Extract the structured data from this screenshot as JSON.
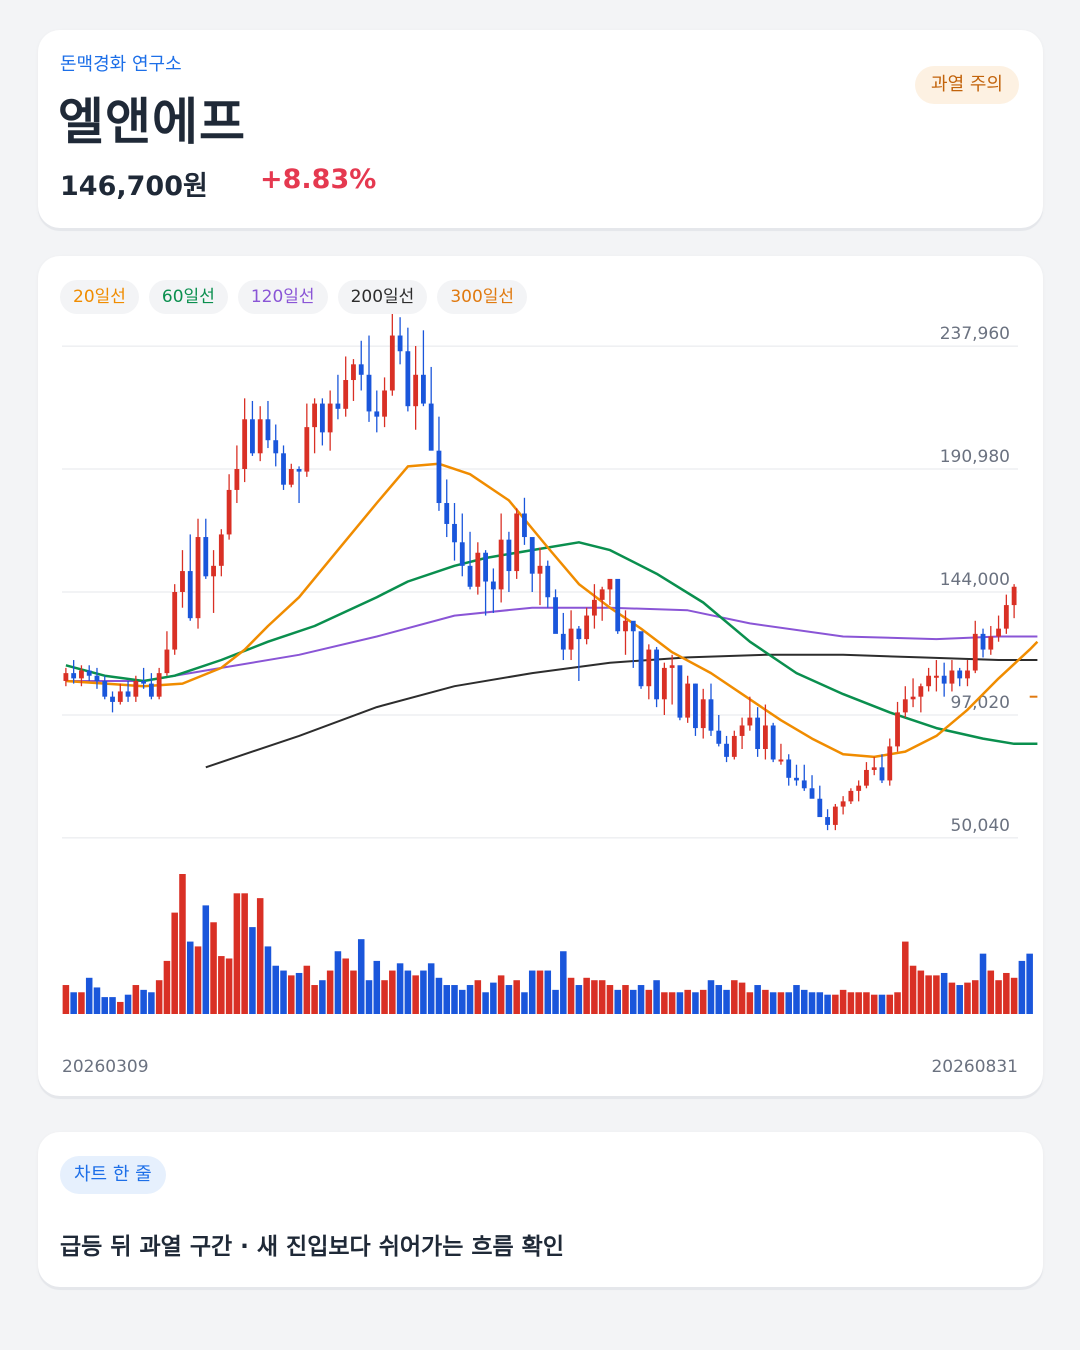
{
  "header": {
    "brand": "돈맥경화 연구소",
    "title": "엘앤에프",
    "price": "146,700원",
    "change": "+8.83%",
    "badge": "과열 주의"
  },
  "colors": {
    "up": "#d93025",
    "down": "#1a56db",
    "ma20": "#f08c00",
    "ma60": "#0a8f4e",
    "ma120": "#8a55d6",
    "ma200": "#2d2d2d",
    "ma300": "#e07a10",
    "grid": "#e5e7eb"
  },
  "summary": {
    "tag": "차트 한 줄",
    "text": "급등 뒤 과열 구간 · 새 진입보다 쉬어가는 흐름 확인"
  },
  "chart_data": {
    "type": "candlestick",
    "legend": [
      {
        "label": "20일선",
        "key": "ma20"
      },
      {
        "label": "60일선",
        "key": "ma60"
      },
      {
        "label": "120일선",
        "key": "ma120"
      },
      {
        "label": "200일선",
        "key": "ma200"
      },
      {
        "label": "300일선",
        "key": "ma300"
      }
    ],
    "y_ticks": [
      {
        "value": 237960,
        "label": "237,960"
      },
      {
        "value": 190980,
        "label": "190,980"
      },
      {
        "value": 144000,
        "label": "144,000"
      },
      {
        "value": 97020,
        "label": "97,020"
      },
      {
        "value": 50040,
        "label": "50,040"
      }
    ],
    "ylim": [
      50040,
      237960
    ],
    "x_start_label": "20260309",
    "x_end_label": "20260831",
    "grid": true,
    "candles": [
      [
        110,
        115,
        108,
        113
      ],
      [
        113,
        118,
        109,
        111
      ],
      [
        111,
        116,
        108,
        114
      ],
      [
        114,
        116,
        110,
        112
      ],
      [
        112,
        115,
        107,
        110
      ],
      [
        110,
        112,
        103,
        104
      ],
      [
        104,
        106,
        98,
        102
      ],
      [
        102,
        109,
        101,
        106
      ],
      [
        106,
        110,
        102,
        104
      ],
      [
        104,
        112,
        102,
        110
      ],
      [
        110,
        115,
        107,
        109
      ],
      [
        109,
        113,
        103,
        104
      ],
      [
        104,
        115,
        103,
        113
      ],
      [
        113,
        129,
        112,
        122
      ],
      [
        122,
        147,
        120,
        144
      ],
      [
        144,
        160,
        138,
        152
      ],
      [
        152,
        166,
        133,
        134
      ],
      [
        134,
        172,
        130,
        165
      ],
      [
        165,
        172,
        149,
        150
      ],
      [
        150,
        160,
        136,
        154
      ],
      [
        154,
        168,
        150,
        166
      ],
      [
        166,
        189,
        164,
        183
      ],
      [
        183,
        200,
        178,
        191
      ],
      [
        191,
        218,
        186,
        210
      ],
      [
        210,
        217,
        196,
        197
      ],
      [
        197,
        215,
        194,
        210
      ],
      [
        210,
        217,
        199,
        202
      ],
      [
        202,
        208,
        192,
        197
      ],
      [
        197,
        200,
        183,
        185
      ],
      [
        185,
        193,
        184,
        191
      ],
      [
        191,
        192,
        178,
        190
      ],
      [
        190,
        216,
        188,
        207
      ],
      [
        207,
        218,
        197,
        216
      ],
      [
        216,
        218,
        200,
        205
      ],
      [
        205,
        221,
        198,
        216
      ],
      [
        216,
        227,
        210,
        214
      ],
      [
        214,
        234,
        211,
        225
      ],
      [
        225,
        233,
        217,
        231
      ],
      [
        231,
        240,
        221,
        227
      ],
      [
        227,
        242,
        209,
        213
      ],
      [
        213,
        221,
        205,
        211
      ],
      [
        211,
        226,
        207,
        221
      ],
      [
        221,
        253,
        219,
        242
      ],
      [
        242,
        249,
        231,
        236
      ],
      [
        236,
        245,
        213,
        215
      ],
      [
        215,
        238,
        206,
        227
      ],
      [
        227,
        244,
        215,
        216
      ],
      [
        216,
        230,
        200,
        198
      ],
      [
        198,
        211,
        175,
        178
      ],
      [
        178,
        187,
        165,
        170
      ],
      [
        170,
        178,
        156,
        163
      ],
      [
        163,
        174,
        150,
        154
      ],
      [
        154,
        167,
        145,
        146
      ],
      [
        146,
        163,
        143,
        159
      ],
      [
        159,
        160,
        135,
        148
      ],
      [
        148,
        153,
        136,
        145
      ],
      [
        145,
        174,
        140,
        164
      ],
      [
        164,
        167,
        144,
        152
      ],
      [
        152,
        176,
        149,
        174
      ],
      [
        174,
        180,
        162,
        165
      ],
      [
        165,
        164,
        144,
        151
      ],
      [
        151,
        161,
        139,
        154
      ],
      [
        154,
        156,
        138,
        142
      ],
      [
        142,
        145,
        129,
        128
      ],
      [
        128,
        136,
        118,
        122
      ],
      [
        122,
        137,
        118,
        130
      ],
      [
        130,
        131,
        110,
        126
      ],
      [
        126,
        138,
        124,
        135
      ],
      [
        135,
        147,
        130,
        141
      ],
      [
        141,
        146,
        133,
        145
      ],
      [
        145,
        148,
        139,
        149
      ],
      [
        149,
        142,
        128,
        129
      ],
      [
        129,
        137,
        120,
        133
      ],
      [
        133,
        131,
        115,
        129
      ],
      [
        129,
        126,
        107,
        108
      ],
      [
        108,
        124,
        103,
        122
      ],
      [
        122,
        123,
        100,
        103
      ],
      [
        103,
        117,
        97,
        115
      ],
      [
        115,
        120,
        101,
        116
      ],
      [
        116,
        114,
        95,
        96
      ],
      [
        96,
        112,
        94,
        109
      ],
      [
        109,
        109,
        89,
        92
      ],
      [
        92,
        107,
        88,
        103
      ],
      [
        103,
        109,
        89,
        91
      ],
      [
        91,
        97,
        85,
        86
      ],
      [
        86,
        89,
        79,
        81
      ],
      [
        81,
        91,
        80,
        89
      ],
      [
        89,
        96,
        84,
        93
      ],
      [
        93,
        104,
        91,
        96
      ],
      [
        96,
        100,
        81,
        84
      ],
      [
        84,
        101,
        80,
        93
      ],
      [
        93,
        94,
        79,
        80
      ],
      [
        80,
        86,
        78,
        80
      ],
      [
        80,
        82,
        70,
        73
      ],
      [
        73,
        78,
        70,
        72
      ],
      [
        72,
        78,
        68,
        69
      ],
      [
        69,
        74,
        66,
        65
      ],
      [
        65,
        70,
        62,
        58
      ],
      [
        58,
        61,
        53,
        55
      ],
      [
        55,
        63,
        53,
        62
      ],
      [
        62,
        66,
        59,
        64
      ],
      [
        64,
        69,
        63,
        68
      ],
      [
        68,
        72,
        64,
        70
      ],
      [
        70,
        79,
        69,
        76
      ],
      [
        76,
        81,
        74,
        77
      ],
      [
        77,
        82,
        71,
        72
      ],
      [
        72,
        88,
        70,
        85
      ],
      [
        85,
        102,
        83,
        98
      ],
      [
        98,
        108,
        96,
        103
      ],
      [
        103,
        111,
        100,
        104
      ],
      [
        104,
        109,
        98,
        108
      ],
      [
        108,
        115,
        106,
        112
      ],
      [
        112,
        118,
        106,
        112
      ],
      [
        112,
        117,
        104,
        109
      ],
      [
        109,
        118,
        106,
        114
      ],
      [
        114,
        115,
        108,
        111
      ],
      [
        111,
        118,
        108,
        114
      ],
      [
        114,
        133,
        113,
        128
      ],
      [
        128,
        130,
        119,
        122
      ],
      [
        122,
        131,
        120,
        127
      ],
      [
        127,
        135,
        125,
        130
      ],
      [
        130,
        143,
        128,
        139
      ],
      [
        139,
        147,
        134,
        146
      ]
    ],
    "volume": [
      12,
      9,
      9,
      15,
      11,
      7,
      7,
      5,
      8,
      12,
      10,
      9,
      14,
      22,
      42,
      58,
      30,
      28,
      45,
      38,
      24,
      23,
      50,
      50,
      36,
      48,
      28,
      20,
      18,
      16,
      17,
      20,
      12,
      14,
      18,
      26,
      23,
      18,
      31,
      14,
      22,
      14,
      18,
      21,
      18,
      16,
      18,
      21,
      15,
      12,
      12,
      10,
      12,
      14,
      9,
      13,
      16,
      12,
      14,
      9,
      18,
      18,
      18,
      10,
      26,
      15,
      12,
      15,
      14,
      14,
      12,
      10,
      12,
      10,
      12,
      10,
      14,
      9,
      9,
      9,
      10,
      9,
      10,
      14,
      12,
      10,
      14,
      13,
      9,
      12,
      10,
      9,
      9,
      9,
      12,
      10,
      9,
      9,
      8,
      8,
      10,
      9,
      9,
      9,
      8,
      8,
      8,
      9,
      30,
      20,
      18,
      16,
      16,
      17,
      13,
      12,
      13,
      14,
      25,
      18,
      14,
      17,
      15,
      22,
      25
    ],
    "ma20": [
      [
        0,
        110
      ],
      [
        10,
        108
      ],
      [
        15,
        109
      ],
      [
        20,
        115
      ],
      [
        23,
        122
      ],
      [
        26,
        131
      ],
      [
        30,
        142
      ],
      [
        35,
        160
      ],
      [
        40,
        178
      ],
      [
        44,
        192
      ],
      [
        48,
        193
      ],
      [
        52,
        189
      ],
      [
        57,
        179
      ],
      [
        62,
        161
      ],
      [
        66,
        147
      ],
      [
        70,
        138
      ],
      [
        74,
        130
      ],
      [
        78,
        121
      ],
      [
        83,
        113
      ],
      [
        88,
        103
      ],
      [
        92,
        95
      ],
      [
        96,
        88
      ],
      [
        100,
        82
      ],
      [
        104,
        81
      ],
      [
        108,
        83
      ],
      [
        112,
        89
      ],
      [
        116,
        99
      ],
      [
        120,
        111
      ],
      [
        124,
        122
      ],
      [
        125,
        125
      ]
    ],
    "ma60": [
      [
        0,
        116
      ],
      [
        5,
        112
      ],
      [
        10,
        110
      ],
      [
        14,
        112
      ],
      [
        20,
        118
      ],
      [
        26,
        125
      ],
      [
        32,
        131
      ],
      [
        40,
        142
      ],
      [
        44,
        148
      ],
      [
        50,
        154
      ],
      [
        54,
        157
      ],
      [
        60,
        160
      ],
      [
        66,
        163
      ],
      [
        70,
        160
      ],
      [
        76,
        151
      ],
      [
        82,
        140
      ],
      [
        88,
        125
      ],
      [
        94,
        113
      ],
      [
        100,
        105
      ],
      [
        106,
        98
      ],
      [
        112,
        92
      ],
      [
        118,
        88
      ],
      [
        122,
        86
      ],
      [
        125,
        86
      ]
    ],
    "ma120": [
      [
        0,
        110
      ],
      [
        10,
        110
      ],
      [
        20,
        115
      ],
      [
        30,
        120
      ],
      [
        40,
        127
      ],
      [
        50,
        135
      ],
      [
        60,
        138
      ],
      [
        70,
        138
      ],
      [
        80,
        137
      ],
      [
        88,
        132
      ],
      [
        100,
        127
      ],
      [
        112,
        126
      ],
      [
        120,
        127
      ],
      [
        125,
        127
      ]
    ],
    "ma200": [
      [
        18,
        77
      ],
      [
        30,
        89
      ],
      [
        40,
        100
      ],
      [
        50,
        108
      ],
      [
        60,
        113
      ],
      [
        70,
        117
      ],
      [
        80,
        119
      ],
      [
        90,
        120
      ],
      [
        100,
        120
      ],
      [
        110,
        119
      ],
      [
        120,
        118
      ],
      [
        125,
        118
      ]
    ],
    "ma300": [
      [
        124,
        104
      ],
      [
        125,
        104
      ]
    ]
  }
}
